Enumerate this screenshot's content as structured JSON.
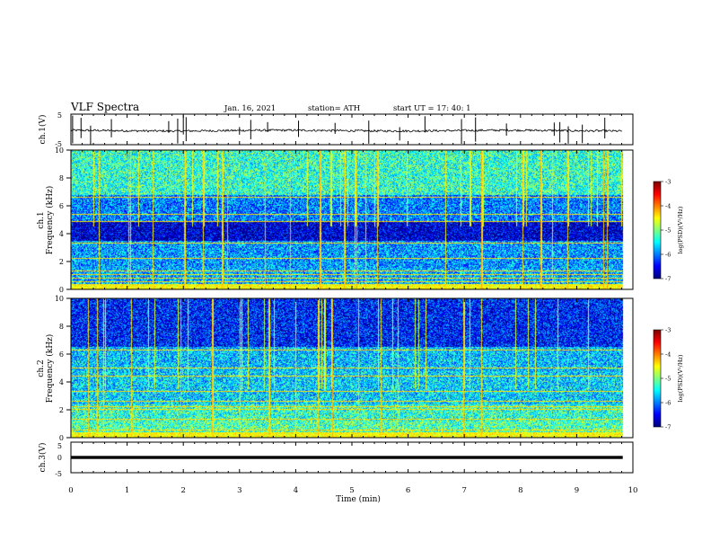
{
  "header": {
    "title": "VLF Spectra",
    "date": "Jan. 16, 2021",
    "station": "station= ATH",
    "start": "start UT =  17: 40: 1"
  },
  "chart_data": [
    {
      "type": "line",
      "name": "ch1-waveform",
      "ylabel": "ch.1(V)",
      "ylim": [
        -5,
        5
      ],
      "yticks": [
        "5",
        "-5"
      ],
      "baseline": -0.4,
      "noise_amplitude": 0.35,
      "spike_times_min": [
        0.03,
        0.18,
        0.35,
        0.72,
        1.74,
        1.9,
        2.0,
        2.05,
        3.0,
        3.2,
        3.5,
        4.05,
        4.7,
        5.3,
        5.85,
        6.3,
        6.95,
        7.2,
        7.75,
        8.6,
        8.7,
        8.85,
        9.1,
        9.5
      ]
    },
    {
      "type": "heatmap",
      "name": "ch1-spectrogram",
      "ylabel": "Frequency (kHz)",
      "channel_label": "ch.1",
      "ylim": [
        0,
        10
      ],
      "yticks": [
        "0",
        "2",
        "4",
        "6",
        "8",
        "10"
      ],
      "colorbar": {
        "label": "log(PSD)(V²/Hz)",
        "range": [
          -7,
          -3
        ],
        "ticks": [
          "-3",
          "-4",
          "-5",
          "-6",
          "-7"
        ]
      },
      "bands_khz": [
        0.5,
        0.8,
        1.05,
        1.3,
        2.2,
        3.3,
        4.9,
        5.4,
        6.6
      ]
    },
    {
      "type": "heatmap",
      "name": "ch2-spectrogram",
      "ylabel": "Frequency (kHz)",
      "channel_label": "ch.2",
      "ylim": [
        0,
        10
      ],
      "yticks": [
        "0",
        "2",
        "4",
        "6",
        "8",
        "10"
      ],
      "colorbar": {
        "label": "log(PSD)(V²/Hz)",
        "range": [
          -7,
          -3
        ],
        "ticks": [
          "-3",
          "-4",
          "-5",
          "-6",
          "-7"
        ]
      },
      "bands_khz": [
        0.5,
        1.3,
        2.0,
        2.2,
        2.6,
        3.3,
        4.4,
        5.0,
        6.3
      ]
    },
    {
      "type": "line",
      "name": "ch3-waveform",
      "ylabel": "ch.3(V)",
      "ylim": [
        -5,
        5
      ],
      "yticks": [
        "5",
        "0",
        "-5"
      ],
      "baseline": 0.0,
      "noise_amplitude": 0.5
    }
  ],
  "xaxis": {
    "xlabel": "Time (min)",
    "xlim": [
      0,
      10
    ],
    "ticks": [
      "0",
      "1",
      "2",
      "3",
      "4",
      "5",
      "6",
      "7",
      "8",
      "9",
      "10"
    ],
    "data_end_min": 9.82
  }
}
